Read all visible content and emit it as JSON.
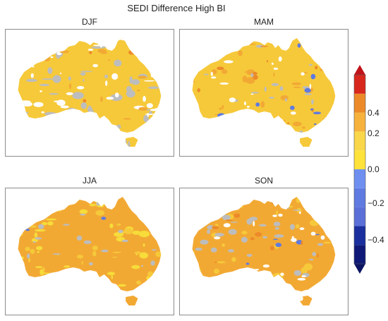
{
  "figure": {
    "title": "SEDI Difference High BI",
    "panels": [
      {
        "id": "djf",
        "label": "DJF"
      },
      {
        "id": "mam",
        "label": "MAM"
      },
      {
        "id": "jja",
        "label": "JJA"
      },
      {
        "id": "son",
        "label": "SON"
      }
    ]
  },
  "colorbar": {
    "min": -0.5,
    "max": 0.5,
    "extend": "both",
    "ticks": [
      "0.4",
      "0.2",
      "0.0",
      "−0.2",
      "−0.4"
    ],
    "tick_values": [
      0.4,
      0.2,
      0.0,
      -0.2,
      -0.4
    ],
    "bins": [
      {
        "from": -0.5,
        "to": -0.4,
        "color": "#0f1a78"
      },
      {
        "from": -0.4,
        "to": -0.3,
        "color": "#1b2f9e"
      },
      {
        "from": -0.3,
        "to": -0.2,
        "color": "#5b6fd8"
      },
      {
        "from": -0.2,
        "to": -0.1,
        "color": "#5f7ae0"
      },
      {
        "from": -0.1,
        "to": 0.0,
        "color": "#6f8ff0"
      },
      {
        "from": 0.0,
        "to": 0.1,
        "color": "#ffe23a"
      },
      {
        "from": 0.1,
        "to": 0.2,
        "color": "#f9d64a"
      },
      {
        "from": 0.2,
        "to": 0.3,
        "color": "#f6b23d"
      },
      {
        "from": 0.3,
        "to": 0.4,
        "color": "#ec8a2a"
      },
      {
        "from": 0.4,
        "to": 0.5,
        "color": "#d8281e"
      }
    ],
    "under_color": "#0b1463",
    "over_color": "#c0141a"
  },
  "colors": {
    "missing": "#bdbdbd",
    "outline": "#8c8c8c"
  }
}
